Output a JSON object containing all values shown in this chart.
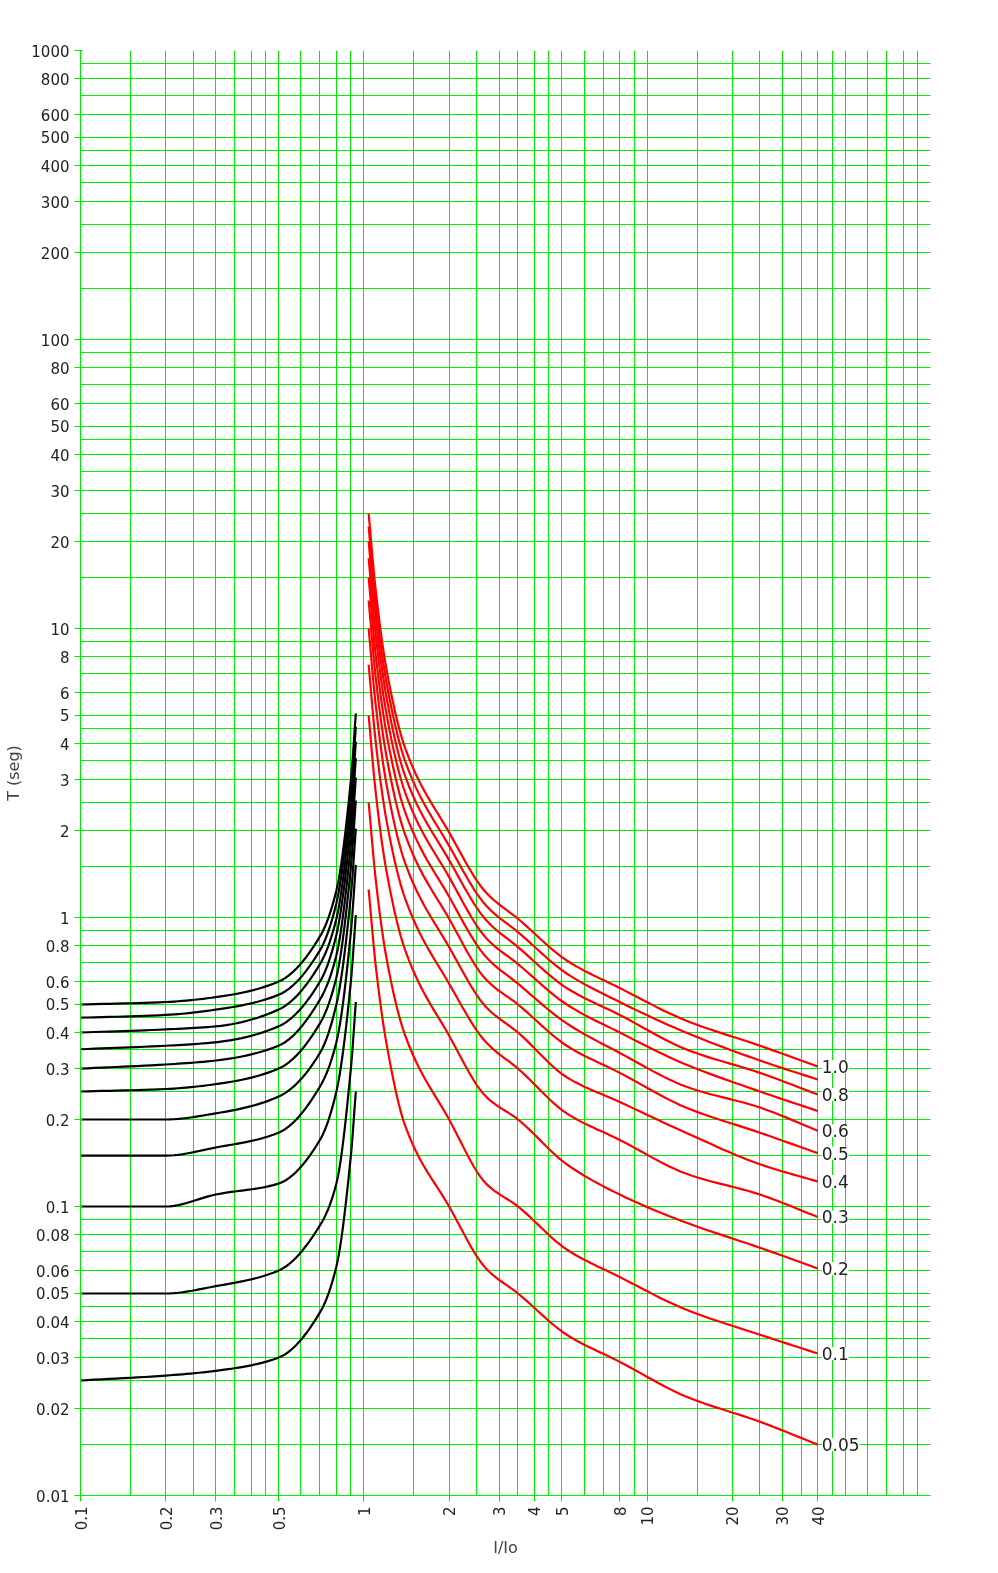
{
  "chart_data": {
    "type": "line",
    "log": "xy",
    "xlabel": "I/Io",
    "ylabel": "T (seg)",
    "xlim": [
      0.1,
      100
    ],
    "ylim": [
      0.01,
      1000
    ],
    "xticks": [
      0.1,
      0.2,
      0.3,
      0.5,
      1,
      2,
      3,
      4,
      5,
      8,
      10,
      20,
      30,
      40
    ],
    "yticks": [
      0.01,
      0.02,
      0.03,
      0.04,
      0.05,
      0.06,
      0.08,
      0.1,
      0.2,
      0.3,
      0.4,
      0.5,
      0.6,
      0.8,
      1,
      2,
      3,
      4,
      5,
      6,
      8,
      10,
      20,
      30,
      40,
      50,
      60,
      80,
      100,
      200,
      300,
      400,
      500,
      600,
      800,
      1000
    ],
    "grid": true,
    "series": [
      {
        "name": "1.0",
        "color": "#ff0000",
        "x": [
          1.04,
          1.1,
          1.2,
          1.4,
          2,
          2.7,
          3.5,
          5.2,
          8,
          13.7,
          25,
          40
        ],
        "values": [
          25,
          13.7,
          7.3,
          3.85,
          1.97,
          1.22,
          0.99,
          0.71,
          0.57,
          0.44,
          0.36,
          0.305
        ]
      },
      {
        "color": "#ff0000",
        "x": [
          1.04,
          1.1,
          1.2,
          1.4,
          2,
          2.7,
          3.5,
          5.2,
          8,
          13.7,
          25,
          40
        ],
        "values": [
          22.5,
          12.3,
          6.57,
          3.47,
          1.77,
          1.1,
          0.89,
          0.64,
          0.51,
          0.4,
          0.32,
          0.275
        ]
      },
      {
        "name": "0.8",
        "color": "#ff0000",
        "x": [
          1.04,
          1.1,
          1.2,
          1.4,
          2,
          2.7,
          3.5,
          5.2,
          8,
          13.7,
          25,
          40
        ],
        "values": [
          20,
          11,
          5.84,
          3.08,
          1.58,
          0.98,
          0.79,
          0.57,
          0.46,
          0.35,
          0.29,
          0.244
        ]
      },
      {
        "color": "#ff0000",
        "x": [
          1.04,
          1.1,
          1.2,
          1.4,
          2,
          2.7,
          3.5,
          5.2,
          8,
          13.7,
          25,
          40
        ],
        "values": [
          17.5,
          9.6,
          5.11,
          2.7,
          1.38,
          0.85,
          0.69,
          0.5,
          0.4,
          0.31,
          0.25,
          0.214
        ]
      },
      {
        "name": "0.6",
        "color": "#ff0000",
        "x": [
          1.04,
          1.1,
          1.2,
          1.4,
          2,
          2.7,
          3.5,
          5.2,
          8,
          13.7,
          25,
          40
        ],
        "values": [
          15,
          8.2,
          4.38,
          2.31,
          1.18,
          0.73,
          0.59,
          0.43,
          0.34,
          0.26,
          0.22,
          0.183
        ]
      },
      {
        "name": "0.5",
        "color": "#ff0000",
        "x": [
          1.04,
          1.1,
          1.2,
          1.4,
          2,
          2.7,
          3.5,
          5.2,
          8,
          13.7,
          25,
          40
        ],
        "values": [
          12.5,
          6.85,
          3.65,
          1.93,
          0.99,
          0.61,
          0.5,
          0.36,
          0.29,
          0.22,
          0.18,
          0.153
        ]
      },
      {
        "name": "0.4",
        "color": "#ff0000",
        "x": [
          1.04,
          1.1,
          1.2,
          1.4,
          2,
          2.7,
          3.5,
          5.2,
          8,
          13.7,
          25,
          40
        ],
        "values": [
          10,
          5.5,
          2.92,
          1.54,
          0.79,
          0.49,
          0.4,
          0.28,
          0.23,
          0.18,
          0.14,
          0.122
        ]
      },
      {
        "name": "0.3",
        "color": "#ff0000",
        "x": [
          1.04,
          1.1,
          1.2,
          1.4,
          2,
          2.7,
          3.5,
          5.2,
          8,
          13.7,
          25,
          40
        ],
        "values": [
          7.5,
          4.1,
          2.19,
          1.16,
          0.59,
          0.37,
          0.3,
          0.21,
          0.17,
          0.13,
          0.11,
          0.092
        ]
      },
      {
        "name": "0.2",
        "color": "#ff0000",
        "x": [
          1.04,
          1.1,
          1.2,
          1.4,
          2,
          2.7,
          3.5,
          5.2,
          8,
          13.7,
          25,
          40
        ],
        "values": [
          5,
          2.74,
          1.46,
          0.77,
          0.39,
          0.24,
          0.2,
          0.14,
          0.11,
          0.088,
          0.072,
          0.061
        ]
      },
      {
        "name": "0.1",
        "color": "#ff0000",
        "x": [
          1.04,
          1.1,
          1.2,
          1.4,
          2,
          2.7,
          3.5,
          5.2,
          8,
          13.7,
          25,
          40
        ],
        "values": [
          2.5,
          1.37,
          0.73,
          0.39,
          0.2,
          0.12,
          0.1,
          0.071,
          0.057,
          0.044,
          0.036,
          0.031
        ]
      },
      {
        "name": "0.05",
        "color": "#ff0000",
        "x": [
          1.04,
          1.1,
          1.2,
          1.4,
          2,
          2.7,
          3.5,
          5.2,
          8,
          13.7,
          25,
          40
        ],
        "values": [
          1.25,
          0.69,
          0.37,
          0.19,
          0.1,
          0.061,
          0.05,
          0.036,
          0.029,
          0.022,
          0.018,
          0.015
        ]
      },
      {
        "color": "#000000",
        "x": [
          0.1,
          0.2,
          0.3,
          0.5,
          0.7,
          0.8,
          0.9,
          0.937
        ],
        "values": [
          0.5,
          0.51,
          0.53,
          0.6,
          0.86,
          1.24,
          2.98,
          5.08
        ]
      },
      {
        "color": "#000000",
        "x": [
          0.1,
          0.2,
          0.3,
          0.5,
          0.7,
          0.8,
          0.9,
          0.937
        ],
        "values": [
          0.45,
          0.46,
          0.48,
          0.54,
          0.77,
          1.12,
          2.68,
          4.57
        ]
      },
      {
        "color": "#000000",
        "x": [
          0.1,
          0.2,
          0.3,
          0.5,
          0.7,
          0.8,
          0.9,
          0.937
        ],
        "values": [
          0.4,
          0.41,
          0.42,
          0.48,
          0.69,
          0.99,
          2.38,
          4.06
        ]
      },
      {
        "color": "#000000",
        "x": [
          0.1,
          0.2,
          0.3,
          0.5,
          0.7,
          0.8,
          0.9,
          0.937
        ],
        "values": [
          0.35,
          0.36,
          0.37,
          0.42,
          0.6,
          0.87,
          2.09,
          3.56
        ]
      },
      {
        "color": "#000000",
        "x": [
          0.1,
          0.2,
          0.3,
          0.5,
          0.7,
          0.8,
          0.9,
          0.937
        ],
        "values": [
          0.3,
          0.31,
          0.32,
          0.36,
          0.52,
          0.74,
          1.79,
          3.05
        ]
      },
      {
        "color": "#000000",
        "x": [
          0.1,
          0.2,
          0.3,
          0.5,
          0.7,
          0.8,
          0.9,
          0.937
        ],
        "values": [
          0.25,
          0.255,
          0.265,
          0.3,
          0.43,
          0.62,
          1.49,
          2.54
        ]
      },
      {
        "color": "#000000",
        "x": [
          0.1,
          0.2,
          0.3,
          0.5,
          0.7,
          0.8,
          0.9,
          0.937
        ],
        "values": [
          0.2,
          0.2,
          0.21,
          0.24,
          0.34,
          0.5,
          1.19,
          2.03
        ]
      },
      {
        "color": "#000000",
        "x": [
          0.1,
          0.2,
          0.3,
          0.5,
          0.7,
          0.8,
          0.9,
          0.937
        ],
        "values": [
          0.15,
          0.15,
          0.16,
          0.18,
          0.26,
          0.37,
          0.89,
          1.52
        ]
      },
      {
        "color": "#000000",
        "x": [
          0.1,
          0.2,
          0.3,
          0.5,
          0.7,
          0.8,
          0.9,
          0.937
        ],
        "values": [
          0.1,
          0.1,
          0.11,
          0.12,
          0.17,
          0.25,
          0.6,
          1.02
        ]
      },
      {
        "color": "#000000",
        "x": [
          0.1,
          0.2,
          0.3,
          0.5,
          0.7,
          0.8,
          0.9,
          0.937
        ],
        "values": [
          0.05,
          0.05,
          0.053,
          0.06,
          0.086,
          0.12,
          0.3,
          0.51
        ]
      },
      {
        "color": "#000000",
        "x": [
          0.1,
          0.2,
          0.3,
          0.5,
          0.7,
          0.8,
          0.9,
          0.937
        ],
        "values": [
          0.025,
          0.026,
          0.027,
          0.03,
          0.043,
          0.062,
          0.15,
          0.25
        ]
      }
    ]
  }
}
